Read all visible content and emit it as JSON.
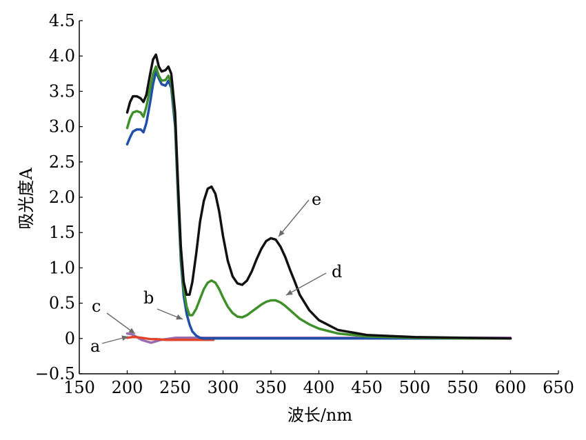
{
  "chart_data": {
    "type": "line",
    "xlabel": "波长/nm",
    "ylabel": "吸光度A",
    "xlim": [
      150,
      650
    ],
    "ylim": [
      -0.5,
      4.5
    ],
    "xticks": [
      "150",
      "200",
      "250",
      "300",
      "350",
      "400",
      "450",
      "500",
      "550",
      "600",
      "650"
    ],
    "yticks": [
      "−0.5",
      "0",
      "0.5",
      "1.0",
      "1.5",
      "2.0",
      "2.5",
      "3.0",
      "3.5",
      "4.0",
      "4.5"
    ],
    "grid": false,
    "series": [
      {
        "name": "a",
        "color": "#e0452a",
        "x": [
          200,
          205,
          210,
          215,
          220,
          225,
          230,
          240,
          250,
          260,
          270,
          280,
          290
        ],
        "y": [
          0.01,
          0.02,
          0.02,
          0.01,
          0.0,
          -0.01,
          -0.01,
          -0.02,
          -0.02,
          -0.02,
          -0.02,
          -0.02,
          -0.02
        ]
      },
      {
        "name": "b",
        "color": "#1f4fa6",
        "x": [
          200,
          203,
          206,
          210,
          214,
          217,
          220,
          224,
          227,
          230,
          233,
          236,
          240,
          243,
          246,
          250,
          253,
          256,
          259,
          262,
          265,
          268,
          272,
          276,
          280,
          300,
          350,
          400,
          450,
          500,
          550,
          600
        ],
        "y": [
          2.75,
          2.85,
          2.93,
          2.96,
          2.96,
          2.92,
          3.05,
          3.35,
          3.6,
          3.78,
          3.68,
          3.6,
          3.58,
          3.65,
          3.55,
          3.0,
          2.0,
          1.1,
          0.6,
          0.35,
          0.2,
          0.1,
          0.04,
          0.01,
          0.0,
          0.0,
          0.0,
          0.0,
          0.0,
          0.0,
          0.0,
          0.0
        ]
      },
      {
        "name": "c",
        "color": "#9b6bb0",
        "x": [
          200,
          205,
          210,
          215,
          220,
          225,
          230,
          235,
          240,
          245,
          250,
          260,
          280,
          300,
          350,
          400,
          450,
          500,
          550,
          600
        ],
        "y": [
          0.07,
          0.06,
          0.02,
          -0.02,
          -0.04,
          -0.06,
          -0.04,
          -0.02,
          -0.01,
          0.0,
          0.01,
          0.01,
          0.01,
          0.01,
          0.01,
          0.01,
          0.01,
          0.01,
          0.01,
          0.01
        ]
      },
      {
        "name": "d",
        "color": "#3f8f2a",
        "x": [
          200,
          203,
          206,
          210,
          214,
          217,
          220,
          224,
          227,
          230,
          233,
          236,
          240,
          243,
          246,
          250,
          253,
          256,
          259,
          262,
          265,
          268,
          272,
          276,
          280,
          284,
          288,
          292,
          296,
          300,
          305,
          310,
          315,
          320,
          325,
          330,
          335,
          340,
          345,
          350,
          355,
          360,
          365,
          370,
          375,
          380,
          390,
          400,
          420,
          450,
          500,
          550,
          600
        ],
        "y": [
          2.98,
          3.12,
          3.2,
          3.22,
          3.2,
          3.14,
          3.28,
          3.55,
          3.75,
          3.85,
          3.72,
          3.65,
          3.66,
          3.72,
          3.62,
          3.1,
          2.1,
          1.2,
          0.7,
          0.45,
          0.33,
          0.33,
          0.42,
          0.56,
          0.7,
          0.79,
          0.82,
          0.79,
          0.7,
          0.58,
          0.45,
          0.36,
          0.31,
          0.3,
          0.33,
          0.38,
          0.43,
          0.48,
          0.52,
          0.54,
          0.54,
          0.51,
          0.46,
          0.4,
          0.34,
          0.28,
          0.2,
          0.14,
          0.07,
          0.03,
          0.01,
          0.0,
          0.0
        ]
      },
      {
        "name": "e",
        "color": "#111111",
        "x": [
          200,
          203,
          206,
          210,
          214,
          217,
          220,
          224,
          227,
          230,
          233,
          236,
          240,
          243,
          246,
          250,
          253,
          256,
          259,
          262,
          265,
          268,
          272,
          276,
          280,
          284,
          288,
          292,
          296,
          300,
          305,
          310,
          315,
          320,
          325,
          330,
          335,
          340,
          345,
          350,
          355,
          360,
          365,
          370,
          375,
          380,
          390,
          400,
          420,
          450,
          500,
          550,
          600
        ],
        "y": [
          3.2,
          3.35,
          3.43,
          3.43,
          3.4,
          3.35,
          3.45,
          3.75,
          3.95,
          4.02,
          3.85,
          3.78,
          3.8,
          3.85,
          3.75,
          3.2,
          2.2,
          1.3,
          0.8,
          0.62,
          0.62,
          0.8,
          1.2,
          1.65,
          1.95,
          2.12,
          2.15,
          2.05,
          1.8,
          1.45,
          1.1,
          0.88,
          0.78,
          0.76,
          0.82,
          0.95,
          1.12,
          1.27,
          1.38,
          1.42,
          1.4,
          1.3,
          1.15,
          0.97,
          0.8,
          0.62,
          0.4,
          0.26,
          0.12,
          0.05,
          0.02,
          0.01,
          0.0
        ]
      }
    ],
    "annotations": [
      {
        "label": "a",
        "series": "a"
      },
      {
        "label": "b",
        "series": "b"
      },
      {
        "label": "c",
        "series": "c"
      },
      {
        "label": "d",
        "series": "d"
      },
      {
        "label": "e",
        "series": "e"
      }
    ]
  }
}
